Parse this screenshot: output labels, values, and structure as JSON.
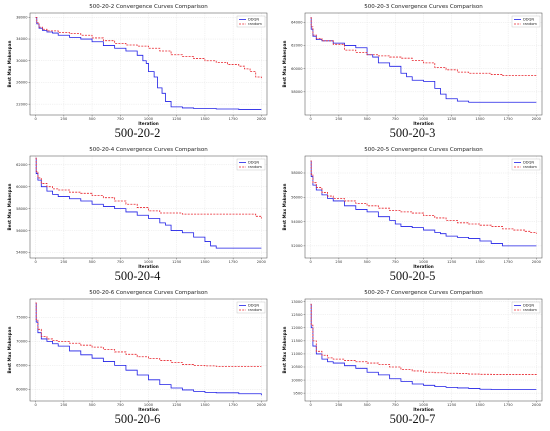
{
  "colors": {
    "ddqn": "#1f1fe6",
    "random": "#e8232b",
    "grid": "#dddddd"
  },
  "chart_data": [
    {
      "type": "line",
      "title": "500-20-2 Convergence Curves Comparison",
      "caption": "500-20-2",
      "xlabel": "Iteration",
      "ylabel": "Best Max Makespan",
      "xlim": [
        -50,
        2050
      ],
      "ylim": [
        20000,
        38800
      ],
      "xticks": [
        0,
        250,
        500,
        750,
        1000,
        1250,
        1500,
        1750,
        2000
      ],
      "yticks": [
        22000,
        26000,
        30000,
        34000,
        38000
      ],
      "legend": "top-right",
      "grid": true,
      "series": [
        {
          "name": "DDQN",
          "style": "solid",
          "x": [
            0,
            10,
            30,
            60,
            100,
            150,
            200,
            300,
            400,
            500,
            600,
            700,
            800,
            900,
            950,
            980,
            1000,
            1050,
            1080,
            1120,
            1150,
            1200,
            1300,
            1400,
            1600,
            1800,
            2000
          ],
          "y": [
            38000,
            36800,
            36000,
            35600,
            35300,
            35100,
            34700,
            34300,
            34000,
            33500,
            32800,
            32300,
            31800,
            31000,
            30000,
            29500,
            28000,
            27000,
            25000,
            24000,
            22500,
            21500,
            21300,
            21200,
            21100,
            21000,
            21000
          ]
        },
        {
          "name": "random",
          "style": "dashed",
          "x": [
            0,
            10,
            30,
            60,
            100,
            200,
            300,
            400,
            500,
            600,
            700,
            800,
            900,
            1000,
            1100,
            1200,
            1300,
            1400,
            1500,
            1600,
            1700,
            1800,
            1850,
            1900,
            1950,
            2000
          ],
          "y": [
            38000,
            37000,
            36200,
            35800,
            35500,
            35200,
            35000,
            34700,
            34200,
            33700,
            33200,
            32900,
            32700,
            32300,
            31800,
            31100,
            30800,
            30400,
            30000,
            29700,
            29300,
            29000,
            28500,
            28000,
            27000,
            26800
          ]
        }
      ]
    },
    {
      "type": "line",
      "title": "500-20-3 Convergence Curves Comparison",
      "caption": "500-20-3",
      "xlabel": "Iteration",
      "ylabel": "Best Max Makespan",
      "xlim": [
        -50,
        2050
      ],
      "ylim": [
        56000,
        64800
      ],
      "xticks": [
        0,
        250,
        500,
        750,
        1000,
        1250,
        1500,
        1750,
        2000
      ],
      "yticks": [
        58000,
        60000,
        62000,
        64000
      ],
      "legend": "top-right",
      "grid": true,
      "series": [
        {
          "name": "DDQN",
          "style": "solid",
          "x": [
            0,
            5,
            20,
            50,
            100,
            200,
            300,
            400,
            500,
            550,
            600,
            700,
            800,
            850,
            900,
            1000,
            1100,
            1150,
            1200,
            1300,
            1400,
            1600,
            1800,
            2000
          ],
          "y": [
            64400,
            63400,
            62800,
            62500,
            62400,
            62200,
            62000,
            61800,
            61200,
            61000,
            60500,
            60200,
            59600,
            59300,
            59000,
            58900,
            58300,
            57800,
            57400,
            57200,
            57100,
            57100,
            57100,
            57100
          ]
        },
        {
          "name": "random",
          "style": "dashed",
          "x": [
            0,
            5,
            20,
            50,
            100,
            200,
            300,
            400,
            500,
            600,
            700,
            800,
            900,
            1000,
            1100,
            1200,
            1300,
            1400,
            1500,
            1600,
            1700,
            1800,
            1900,
            2000
          ],
          "y": [
            64400,
            63600,
            62900,
            62600,
            62400,
            62100,
            61600,
            61400,
            61200,
            61100,
            61000,
            60900,
            60700,
            60500,
            60100,
            59900,
            59700,
            59600,
            59600,
            59500,
            59400,
            59400,
            59400,
            59400
          ]
        }
      ]
    },
    {
      "type": "line",
      "title": "500-20-4 Convergence Curves Comparison",
      "caption": "500-20-4",
      "xlabel": "Iteration",
      "ylabel": "Best Max Makespan",
      "xlim": [
        -50,
        2050
      ],
      "ylim": [
        53500,
        62800
      ],
      "xticks": [
        0,
        250,
        500,
        750,
        1000,
        1250,
        1500,
        1750,
        2000
      ],
      "yticks": [
        54000,
        56000,
        58000,
        60000,
        62000
      ],
      "legend": "top-right",
      "grid": true,
      "series": [
        {
          "name": "DDQN",
          "style": "solid",
          "x": [
            0,
            5,
            20,
            50,
            100,
            150,
            200,
            300,
            400,
            500,
            600,
            700,
            800,
            900,
            1000,
            1100,
            1150,
            1200,
            1300,
            1400,
            1500,
            1550,
            1600,
            1700,
            1800,
            2000
          ],
          "y": [
            62600,
            61200,
            60600,
            60000,
            59600,
            59300,
            59100,
            58900,
            58700,
            58400,
            58200,
            58000,
            57700,
            57400,
            57100,
            56700,
            56500,
            56000,
            55800,
            55400,
            55000,
            54600,
            54400,
            54400,
            54400,
            54400
          ]
        },
        {
          "name": "random",
          "style": "dashed",
          "x": [
            0,
            5,
            20,
            50,
            100,
            150,
            200,
            300,
            400,
            500,
            600,
            700,
            800,
            900,
            1000,
            1100,
            1300,
            1500,
            1700,
            1900,
            1950,
            2000
          ],
          "y": [
            62600,
            61400,
            60800,
            60300,
            60000,
            59800,
            59700,
            59500,
            59400,
            59200,
            59000,
            58700,
            58400,
            58100,
            57800,
            57600,
            57500,
            57500,
            57500,
            57500,
            57300,
            57100
          ]
        }
      ]
    },
    {
      "type": "line",
      "title": "500-20-5 Convergence Curves Comparison",
      "caption": "500-20-5",
      "xlabel": "Iteration",
      "ylabel": "Best Max Makespan",
      "xlim": [
        -50,
        2050
      ],
      "ylim": [
        51000,
        59400
      ],
      "xticks": [
        0,
        250,
        500,
        750,
        1000,
        1250,
        1500,
        1750,
        2000
      ],
      "yticks": [
        52000,
        54000,
        56000,
        58000
      ],
      "legend": "top-right",
      "grid": true,
      "series": [
        {
          "name": "DDQN",
          "style": "solid",
          "x": [
            0,
            5,
            20,
            50,
            100,
            150,
            200,
            300,
            400,
            500,
            600,
            700,
            750,
            800,
            900,
            1000,
            1100,
            1150,
            1200,
            1300,
            1400,
            1500,
            1600,
            1700,
            1800,
            2000
          ],
          "y": [
            59000,
            57700,
            57000,
            56600,
            56200,
            55900,
            55700,
            55300,
            55000,
            54800,
            54400,
            54100,
            53800,
            53600,
            53500,
            53300,
            53100,
            53000,
            52800,
            52700,
            52600,
            52400,
            52200,
            52000,
            52000,
            52000
          ]
        },
        {
          "name": "random",
          "style": "dashed",
          "x": [
            0,
            5,
            20,
            50,
            100,
            150,
            200,
            300,
            400,
            500,
            600,
            700,
            800,
            900,
            1000,
            1100,
            1200,
            1300,
            1400,
            1500,
            1600,
            1700,
            1800,
            1900,
            1950,
            2000
          ],
          "y": [
            59000,
            57900,
            57200,
            56800,
            56400,
            56100,
            55900,
            55700,
            55500,
            55300,
            55100,
            54900,
            54800,
            54700,
            54500,
            54300,
            54100,
            53900,
            53800,
            53700,
            53600,
            53400,
            53300,
            53200,
            53100,
            53000
          ]
        }
      ]
    },
    {
      "type": "line",
      "title": "500-20-6 Convergence Curves Comparison",
      "caption": "500-20-6",
      "xlabel": "Iteration",
      "ylabel": "Best Max Makespan",
      "xlim": [
        -50,
        2050
      ],
      "ylim": [
        57600,
        78800
      ],
      "xticks": [
        0,
        250,
        500,
        750,
        1000,
        1250,
        1500,
        1750,
        2000
      ],
      "yticks": [
        60000,
        65000,
        70000,
        75000
      ],
      "legend": "top-right",
      "grid": true,
      "series": [
        {
          "name": "DDQN",
          "style": "solid",
          "x": [
            0,
            5,
            20,
            50,
            100,
            150,
            200,
            300,
            400,
            500,
            600,
            700,
            800,
            900,
            1000,
            1100,
            1200,
            1300,
            1400,
            1500,
            1600,
            1800,
            2000
          ],
          "y": [
            78000,
            74000,
            71800,
            70500,
            70000,
            69500,
            69000,
            68000,
            67200,
            66500,
            65800,
            65000,
            64000,
            63000,
            62000,
            61000,
            60300,
            59900,
            59600,
            59400,
            59300,
            59100,
            58800
          ]
        },
        {
          "name": "random",
          "style": "dashed",
          "x": [
            0,
            5,
            20,
            50,
            100,
            150,
            200,
            300,
            400,
            500,
            600,
            700,
            800,
            900,
            1000,
            1100,
            1200,
            1300,
            1400,
            1500,
            1600,
            1800,
            2000
          ],
          "y": [
            78000,
            74500,
            72500,
            71000,
            70500,
            70200,
            70000,
            69600,
            69200,
            68800,
            68300,
            67800,
            67300,
            66800,
            66400,
            66000,
            65600,
            65200,
            65000,
            64900,
            64800,
            64800,
            64800
          ]
        }
      ]
    },
    {
      "type": "line",
      "title": "500-20-7 Convergence Curves Comparison",
      "caption": "500-20-7",
      "xlabel": "Iteration",
      "ylabel": "Best Max Makespan",
      "xlim": [
        -50,
        2050
      ],
      "ylim": [
        9200,
        13100
      ],
      "xticks": [
        0,
        250,
        500,
        750,
        1000,
        1250,
        1500,
        1750,
        2000
      ],
      "yticks": [
        9500,
        10000,
        10500,
        11000,
        11500,
        12000,
        12500,
        13000
      ],
      "legend": "top-right",
      "grid": true,
      "series": [
        {
          "name": "DDQN",
          "style": "solid",
          "x": [
            0,
            5,
            20,
            50,
            100,
            150,
            200,
            300,
            400,
            500,
            600,
            700,
            800,
            900,
            1000,
            1100,
            1200,
            1300,
            1400,
            1500,
            1600,
            1800,
            2000
          ],
          "y": [
            12900,
            12000,
            11300,
            11000,
            10800,
            10700,
            10650,
            10550,
            10450,
            10300,
            10200,
            10050,
            9950,
            9850,
            9800,
            9750,
            9720,
            9700,
            9680,
            9650,
            9640,
            9640,
            9640
          ]
        },
        {
          "name": "random",
          "style": "dashed",
          "x": [
            0,
            5,
            20,
            50,
            100,
            150,
            200,
            300,
            400,
            500,
            600,
            700,
            800,
            900,
            1000,
            1100,
            1200,
            1300,
            1400,
            1500,
            1600,
            1800,
            2000
          ],
          "y": [
            12900,
            12100,
            11500,
            11100,
            10950,
            10850,
            10800,
            10750,
            10700,
            10650,
            10600,
            10500,
            10400,
            10350,
            10300,
            10280,
            10260,
            10250,
            10230,
            10220,
            10210,
            10210,
            10200
          ]
        }
      ]
    }
  ]
}
